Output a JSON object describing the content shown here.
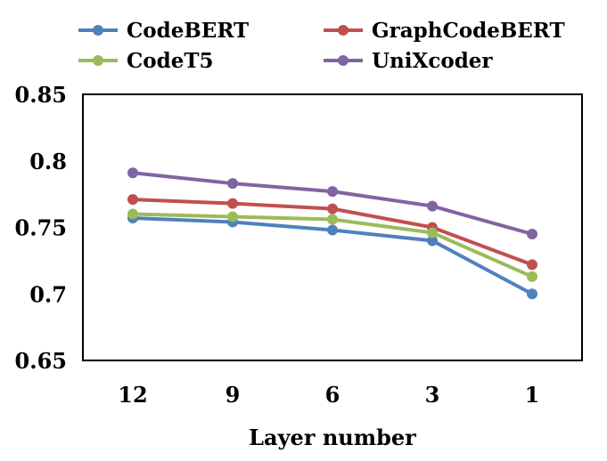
{
  "chart_data": {
    "type": "line",
    "categories": [
      "12",
      "9",
      "6",
      "3",
      "1"
    ],
    "series": [
      {
        "name": "CodeBERT",
        "color": "#4F81BD",
        "values": [
          0.757,
          0.754,
          0.748,
          0.74,
          0.7
        ]
      },
      {
        "name": "GraphCodeBERT",
        "color": "#C0504D",
        "values": [
          0.771,
          0.768,
          0.764,
          0.75,
          0.722
        ]
      },
      {
        "name": "CodeT5",
        "color": "#9BBB59",
        "values": [
          0.76,
          0.758,
          0.756,
          0.746,
          0.713
        ]
      },
      {
        "name": "UniXcoder",
        "color": "#8064A2",
        "values": [
          0.791,
          0.783,
          0.777,
          0.766,
          0.745
        ]
      }
    ],
    "title": "",
    "xlabel": "Layer number",
    "ylabel": "",
    "ylim": [
      0.65,
      0.85
    ],
    "yticks": [
      "0.65",
      "0.7",
      "0.75",
      "0.8",
      "0.85"
    ],
    "grid": false,
    "legend_position": "top"
  }
}
